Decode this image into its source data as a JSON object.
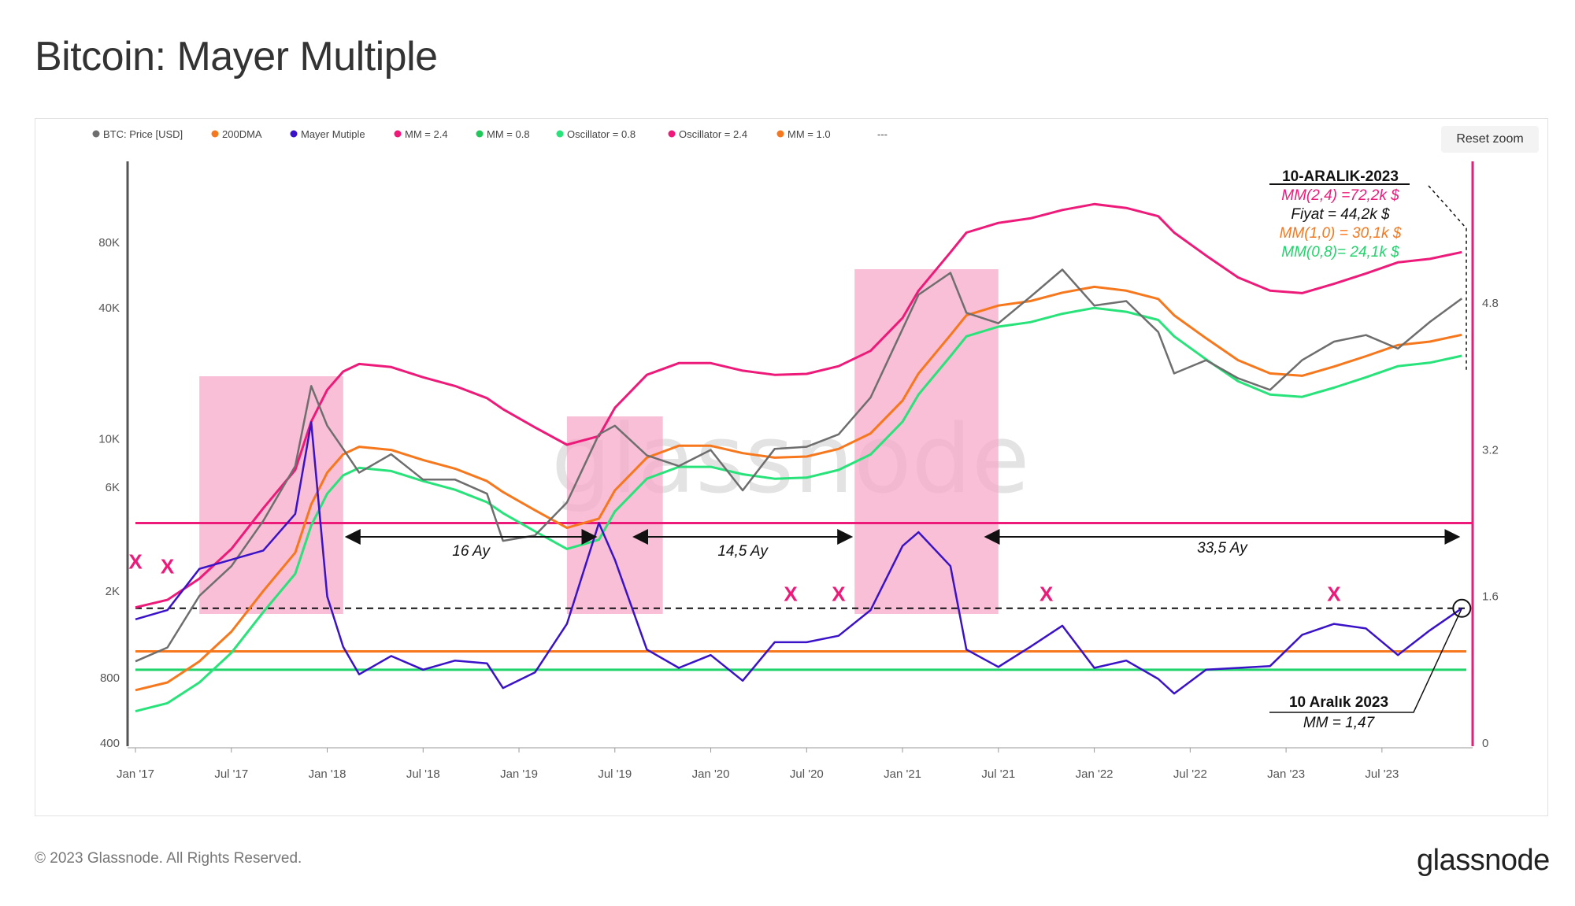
{
  "page": {
    "title": "Bitcoin: Mayer Multiple",
    "reset_zoom": "Reset zoom",
    "copyright": "© 2023 Glassnode. All Rights Reserved.",
    "brand": "glassnode",
    "watermark": "glassnode"
  },
  "colors": {
    "price": "#6e6e6e",
    "dma200": "#f7771c",
    "mayer": "#3a12c7",
    "mm24": "#ee1a7a",
    "mm08": "#28e27a",
    "osc08": "#21d36b",
    "osc24": "#ee1a7a",
    "mm10": "#f7771c",
    "shade": "#f5a9c8"
  },
  "legend": [
    {
      "label": "BTC: Price [USD]",
      "color": "#6e6e6e"
    },
    {
      "label": "200DMA",
      "color": "#f7771c"
    },
    {
      "label": "Mayer Mutiple",
      "color": "#3a12c7"
    },
    {
      "label": "MM = 2.4",
      "color": "#ee1a7a"
    },
    {
      "label": "MM = 0.8",
      "color": "#21c75a"
    },
    {
      "label": "Oscillator = 0.8",
      "color": "#28e27a"
    },
    {
      "label": "Oscillator = 2.4",
      "color": "#ee1a7a"
    },
    {
      "label": "MM = 1.0",
      "color": "#f7771c"
    },
    {
      "label": "---",
      "color": "#888888"
    }
  ],
  "annotations": {
    "box_title": "10-ARALIK-2023",
    "box_mm24": "MM(2,4) =72,2k $",
    "box_price": "Fiyat = 44,2k $",
    "box_mm10": "MM(1,0) = 30,1k $",
    "box_mm08": "MM(0,8)= 24,1k $",
    "bottom_title": "10 Aralık 2023",
    "bottom_mm": "MM = 1,47",
    "span1": "16 Ay",
    "span2": "14,5 Ay",
    "span3": "33,5 Ay",
    "x_label": "X"
  },
  "chart_data": {
    "type": "line",
    "title": "Bitcoin: Mayer Multiple",
    "x_ticks": [
      "Jan '17",
      "Jul '17",
      "Jan '18",
      "Jul '18",
      "Jan '19",
      "Jul '19",
      "Jan '20",
      "Jul '20",
      "Jan '21",
      "Jul '21",
      "Jan '22",
      "Jul '22",
      "Jan '23",
      "Jul '23"
    ],
    "y_left_ticks": [
      "400",
      "800",
      "2K",
      "6K",
      "10K",
      "40K",
      "80K"
    ],
    "y_left_scale": "log",
    "y_right_ticks": [
      "0",
      "1.6",
      "3.2",
      "4.8"
    ],
    "y_right_scale": "linear",
    "horizontal_levels": {
      "mm_threshold_dashed": 1.47,
      "oscillator_2_4": 2.4,
      "mm_1_0": 1.0,
      "oscillator_0_8": 0.8
    },
    "shaded_periods": [
      [
        "2017-05",
        "2018-02"
      ],
      [
        "2019-04",
        "2019-10"
      ],
      [
        "2020-10",
        "2021-07"
      ]
    ],
    "spans": [
      {
        "label": "16 Ay",
        "from": "2018-02",
        "to": "2019-06"
      },
      {
        "label": "14,5 Ay",
        "from": "2019-08",
        "to": "2020-10"
      },
      {
        "label": "33,5 Ay",
        "from": "2021-06",
        "to": "2023-12"
      }
    ],
    "x_markers": [
      "2017-01",
      "2017-03",
      "2020-06",
      "2020-09",
      "2021-10",
      "2023-04"
    ],
    "x_dates": [
      "2017-01",
      "2017-03",
      "2017-05",
      "2017-07",
      "2017-09",
      "2017-11",
      "2017-12",
      "2018-01",
      "2018-02",
      "2018-03",
      "2018-05",
      "2018-07",
      "2018-09",
      "2018-11",
      "2018-12",
      "2019-02",
      "2019-04",
      "2019-06",
      "2019-07",
      "2019-09",
      "2019-11",
      "2020-01",
      "2020-03",
      "2020-05",
      "2020-07",
      "2020-09",
      "2020-11",
      "2021-01",
      "2021-02",
      "2021-04",
      "2021-05",
      "2021-07",
      "2021-09",
      "2021-11",
      "2022-01",
      "2022-03",
      "2022-05",
      "2022-06",
      "2022-08",
      "2022-10",
      "2022-12",
      "2023-02",
      "2023-04",
      "2023-06",
      "2023-08",
      "2023-10",
      "2023-12"
    ],
    "series": [
      {
        "name": "BTC: Price [USD]",
        "axis": "left",
        "values": [
          950,
          1100,
          1900,
          2600,
          4200,
          7500,
          17500,
          11500,
          9000,
          7000,
          8500,
          6500,
          6500,
          5600,
          3400,
          3600,
          5100,
          10500,
          11500,
          8400,
          7500,
          8900,
          5800,
          9000,
          9200,
          10500,
          15500,
          32000,
          46000,
          58000,
          38000,
          34000,
          45000,
          60000,
          41000,
          43000,
          31000,
          20000,
          23000,
          19000,
          16800,
          23000,
          28000,
          30000,
          26000,
          34500,
          44200
        ]
      },
      {
        "name": "200DMA",
        "axis": "left",
        "values": [
          700,
          760,
          950,
          1300,
          2000,
          3000,
          5000,
          7000,
          8500,
          9200,
          8900,
          8000,
          7300,
          6400,
          5700,
          4700,
          3900,
          4300,
          5800,
          8200,
          9300,
          9300,
          8600,
          8200,
          8300,
          9000,
          10600,
          15000,
          20000,
          30000,
          37000,
          41000,
          43000,
          47000,
          50000,
          48000,
          44000,
          37000,
          29000,
          23000,
          20000,
          19500,
          21500,
          24000,
          27000,
          28000,
          30100
        ]
      },
      {
        "name": "Mayer Mutiple",
        "axis": "right",
        "values": [
          1.35,
          1.45,
          1.9,
          2.0,
          2.1,
          2.5,
          3.5,
          1.6,
          1.05,
          0.75,
          0.95,
          0.8,
          0.9,
          0.87,
          0.6,
          0.77,
          1.3,
          2.4,
          2.0,
          1.02,
          0.82,
          0.96,
          0.68,
          1.1,
          1.1,
          1.17,
          1.45,
          2.15,
          2.3,
          1.93,
          1.02,
          0.83,
          1.05,
          1.28,
          0.82,
          0.9,
          0.7,
          0.54,
          0.8,
          0.82,
          0.84,
          1.18,
          1.3,
          1.25,
          0.96,
          1.23,
          1.47
        ]
      },
      {
        "name": "MM = 2.4",
        "axis": "left",
        "values": [
          1680,
          1820,
          2280,
          3120,
          4800,
          7200,
          12000,
          16800,
          20400,
          22100,
          21400,
          19200,
          17500,
          15400,
          13700,
          11300,
          9400,
          10300,
          13900,
          19700,
          22300,
          22300,
          20600,
          19700,
          19900,
          21600,
          25400,
          36000,
          48000,
          72000,
          88800,
          98400,
          103200,
          112800,
          120000,
          115200,
          105600,
          88800,
          69600,
          55200,
          48000,
          46800,
          51600,
          57600,
          64800,
          67200,
          72200
        ]
      },
      {
        "name": "MM = 0.8",
        "axis": "left",
        "values": [
          560,
          610,
          760,
          1040,
          1600,
          2400,
          4000,
          5600,
          6800,
          7360,
          7120,
          6400,
          5840,
          5120,
          4560,
          3760,
          3120,
          3440,
          4640,
          6560,
          7440,
          7440,
          6880,
          6560,
          6640,
          7200,
          8480,
          12000,
          16000,
          24000,
          29600,
          32800,
          34400,
          37600,
          40000,
          38400,
          35200,
          29600,
          23200,
          18400,
          16000,
          15600,
          17200,
          19200,
          21600,
          22400,
          24100
        ]
      }
    ]
  }
}
